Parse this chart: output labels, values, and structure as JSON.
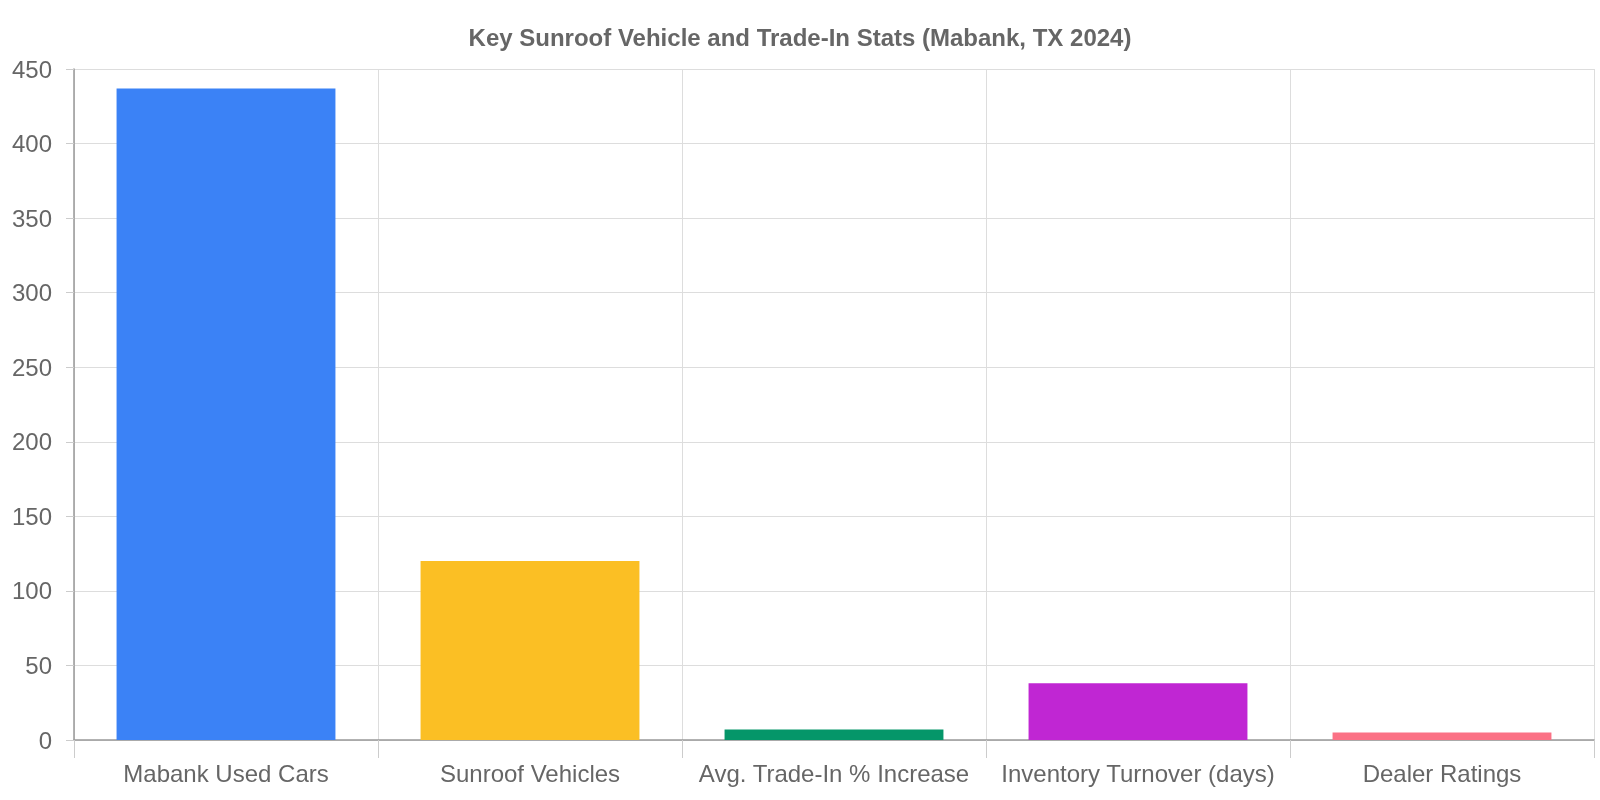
{
  "chart_data": {
    "type": "bar",
    "title": "Key Sunroof Vehicle and Trade-In Stats (Mabank, TX 2024)",
    "categories": [
      "Mabank Used Cars",
      "Sunroof Vehicles",
      "Avg. Trade-In % Increase",
      "Inventory Turnover (days)",
      "Dealer Ratings"
    ],
    "values": [
      437,
      120,
      7,
      38,
      5
    ],
    "colors": [
      "#3b82f6",
      "#fbbf24",
      "#059669",
      "#c026d3",
      "#fb7185"
    ],
    "ylim": [
      0,
      450
    ],
    "yticks": [
      0,
      50,
      100,
      150,
      200,
      250,
      300,
      350,
      400,
      450
    ],
    "grid": true
  }
}
